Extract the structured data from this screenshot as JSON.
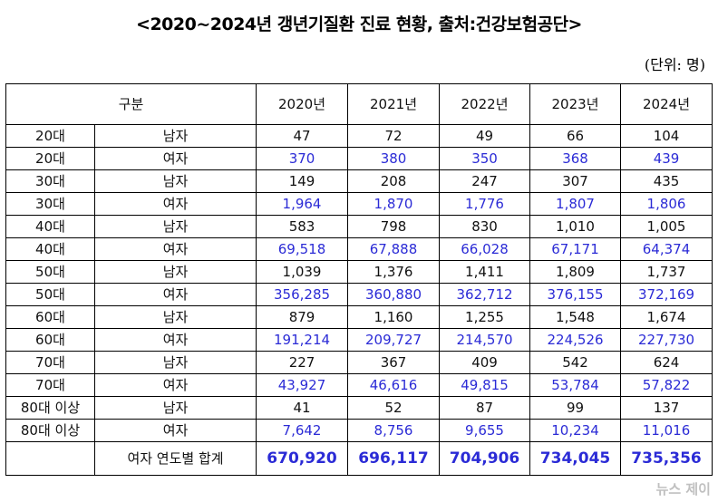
{
  "title": "<2020~2024년 갱년기질환 진료 현황, 출처:건강보험공단>",
  "unit": "(단위: 명)",
  "table": {
    "header_category": "구분",
    "years": [
      "2020년",
      "2021년",
      "2022년",
      "2023년",
      "2024년"
    ],
    "rows": [
      {
        "age": "20대",
        "sex": "남자",
        "values": [
          "47",
          "72",
          "49",
          "66",
          "104"
        ]
      },
      {
        "age": "20대",
        "sex": "여자",
        "values": [
          "370",
          "380",
          "350",
          "368",
          "439"
        ]
      },
      {
        "age": "30대",
        "sex": "남자",
        "values": [
          "149",
          "208",
          "247",
          "307",
          "435"
        ]
      },
      {
        "age": "30대",
        "sex": "여자",
        "values": [
          "1,964",
          "1,870",
          "1,776",
          "1,807",
          "1,806"
        ]
      },
      {
        "age": "40대",
        "sex": "남자",
        "values": [
          "583",
          "798",
          "830",
          "1,010",
          "1,005"
        ]
      },
      {
        "age": "40대",
        "sex": "여자",
        "values": [
          "69,518",
          "67,888",
          "66,028",
          "67,171",
          "64,374"
        ]
      },
      {
        "age": "50대",
        "sex": "남자",
        "values": [
          "1,039",
          "1,376",
          "1,411",
          "1,809",
          "1,737"
        ]
      },
      {
        "age": "50대",
        "sex": "여자",
        "values": [
          "356,285",
          "360,880",
          "362,712",
          "376,155",
          "372,169"
        ]
      },
      {
        "age": "60대",
        "sex": "남자",
        "values": [
          "879",
          "1,160",
          "1,255",
          "1,548",
          "1,674"
        ]
      },
      {
        "age": "60대",
        "sex": "여자",
        "values": [
          "191,214",
          "209,727",
          "214,570",
          "224,526",
          "227,730"
        ]
      },
      {
        "age": "70대",
        "sex": "남자",
        "values": [
          "227",
          "367",
          "409",
          "542",
          "624"
        ]
      },
      {
        "age": "70대",
        "sex": "여자",
        "values": [
          "43,927",
          "46,616",
          "49,815",
          "53,784",
          "57,822"
        ]
      },
      {
        "age": "80대 이상",
        "sex": "남자",
        "values": [
          "41",
          "52",
          "87",
          "99",
          "137"
        ]
      },
      {
        "age": "80대 이상",
        "sex": "여자",
        "values": [
          "7,642",
          "8,756",
          "9,655",
          "10,234",
          "11,016"
        ]
      }
    ],
    "total": {
      "label": "여자 연도별 합계",
      "values": [
        "670,920",
        "696,117",
        "704,906",
        "734,045",
        "735,356"
      ]
    }
  },
  "watermark": "뉴스 제이",
  "colors": {
    "female_text": "#2b2bd6",
    "male_text": "#111111"
  }
}
